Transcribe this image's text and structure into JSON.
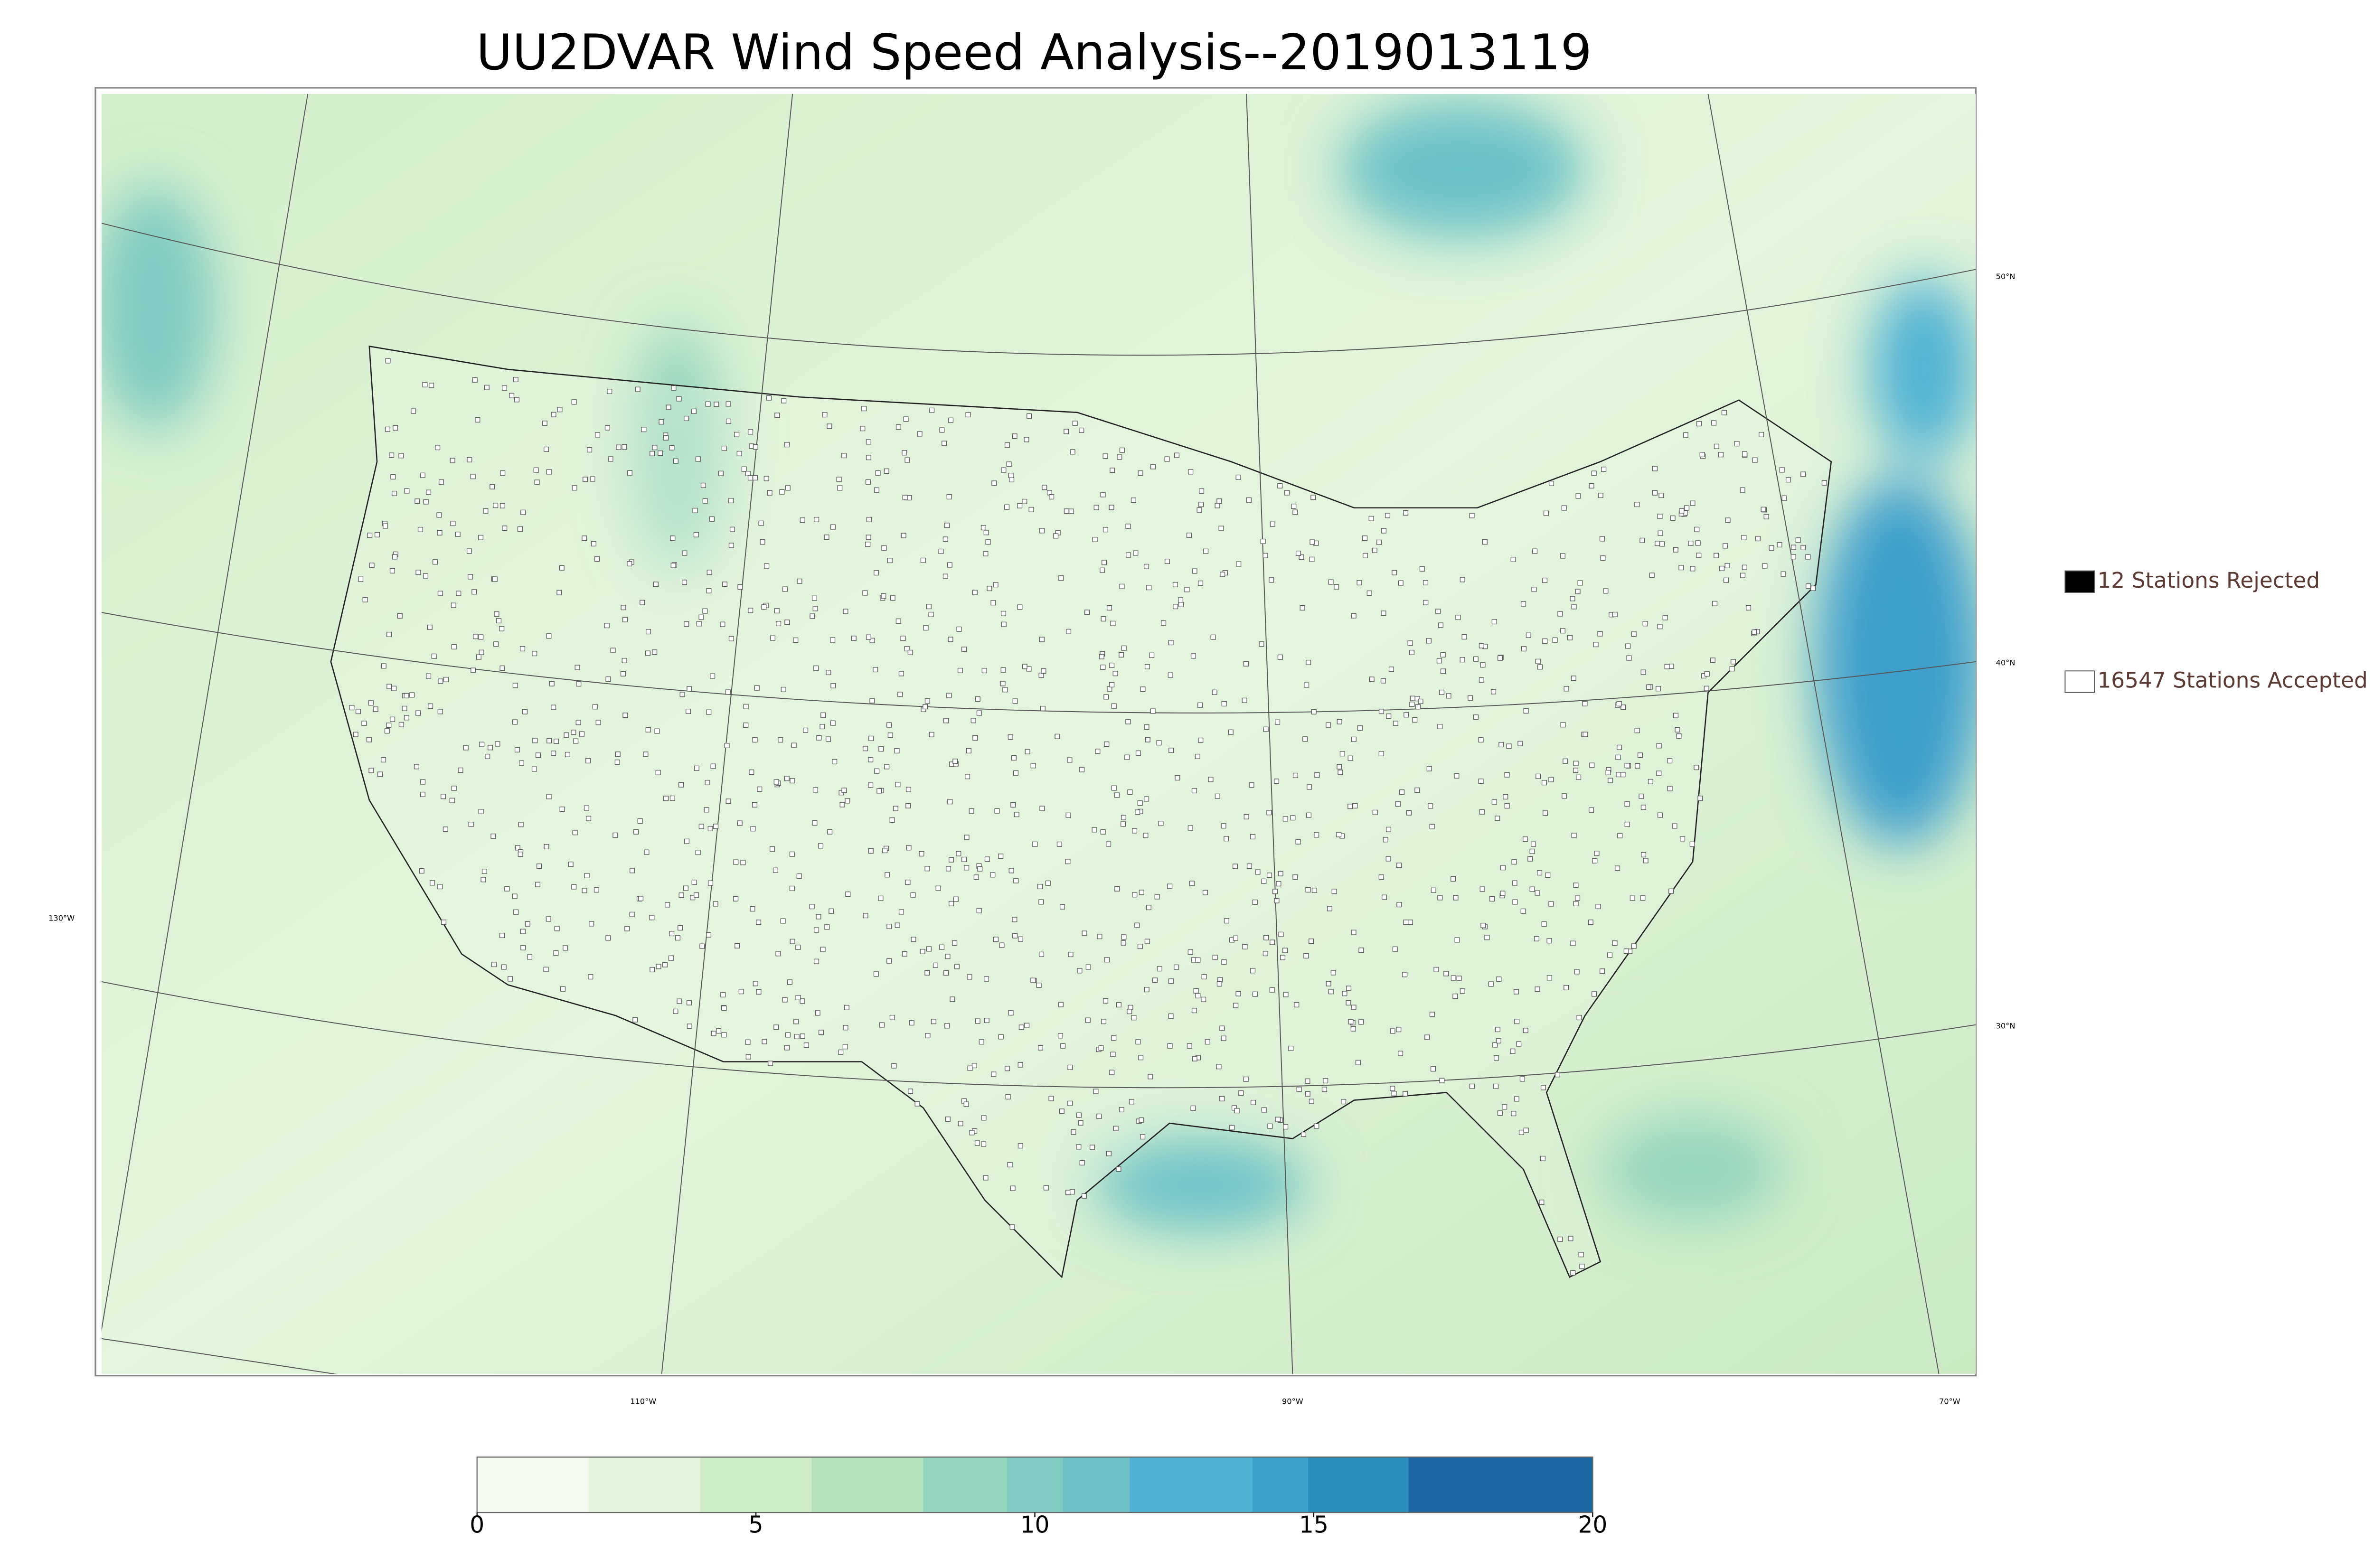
{
  "title": "UU2DVAR Wind Speed Analysis--2019013119",
  "legend": [
    {
      "label": "12 Stations Rejected",
      "color": "#000000"
    },
    {
      "label": "16547 Stations Accepted",
      "color": "#ffffff"
    }
  ],
  "colorbar": {
    "lim": [
      0,
      20
    ],
    "ticks": [
      0,
      5,
      10,
      15,
      20
    ],
    "bounds": [
      0,
      2,
      4,
      6,
      8,
      9.5,
      10.5,
      11.7,
      13.9,
      14.9,
      16.7,
      20
    ],
    "colors": [
      "#f3faee",
      "#e2f4dc",
      "#cdecc7",
      "#b3e1bc",
      "#96d5bd",
      "#7fcbc2",
      "#6cc2c6",
      "#4fb2d3",
      "#3d9fcc",
      "#2b8cbe",
      "#1966a0"
    ]
  },
  "graticule": {
    "lat_labels": [
      "50°N",
      "40°N",
      "30°N"
    ],
    "lon_labels": [
      "130°W",
      "110°W",
      "90°W",
      "70°W"
    ]
  }
}
